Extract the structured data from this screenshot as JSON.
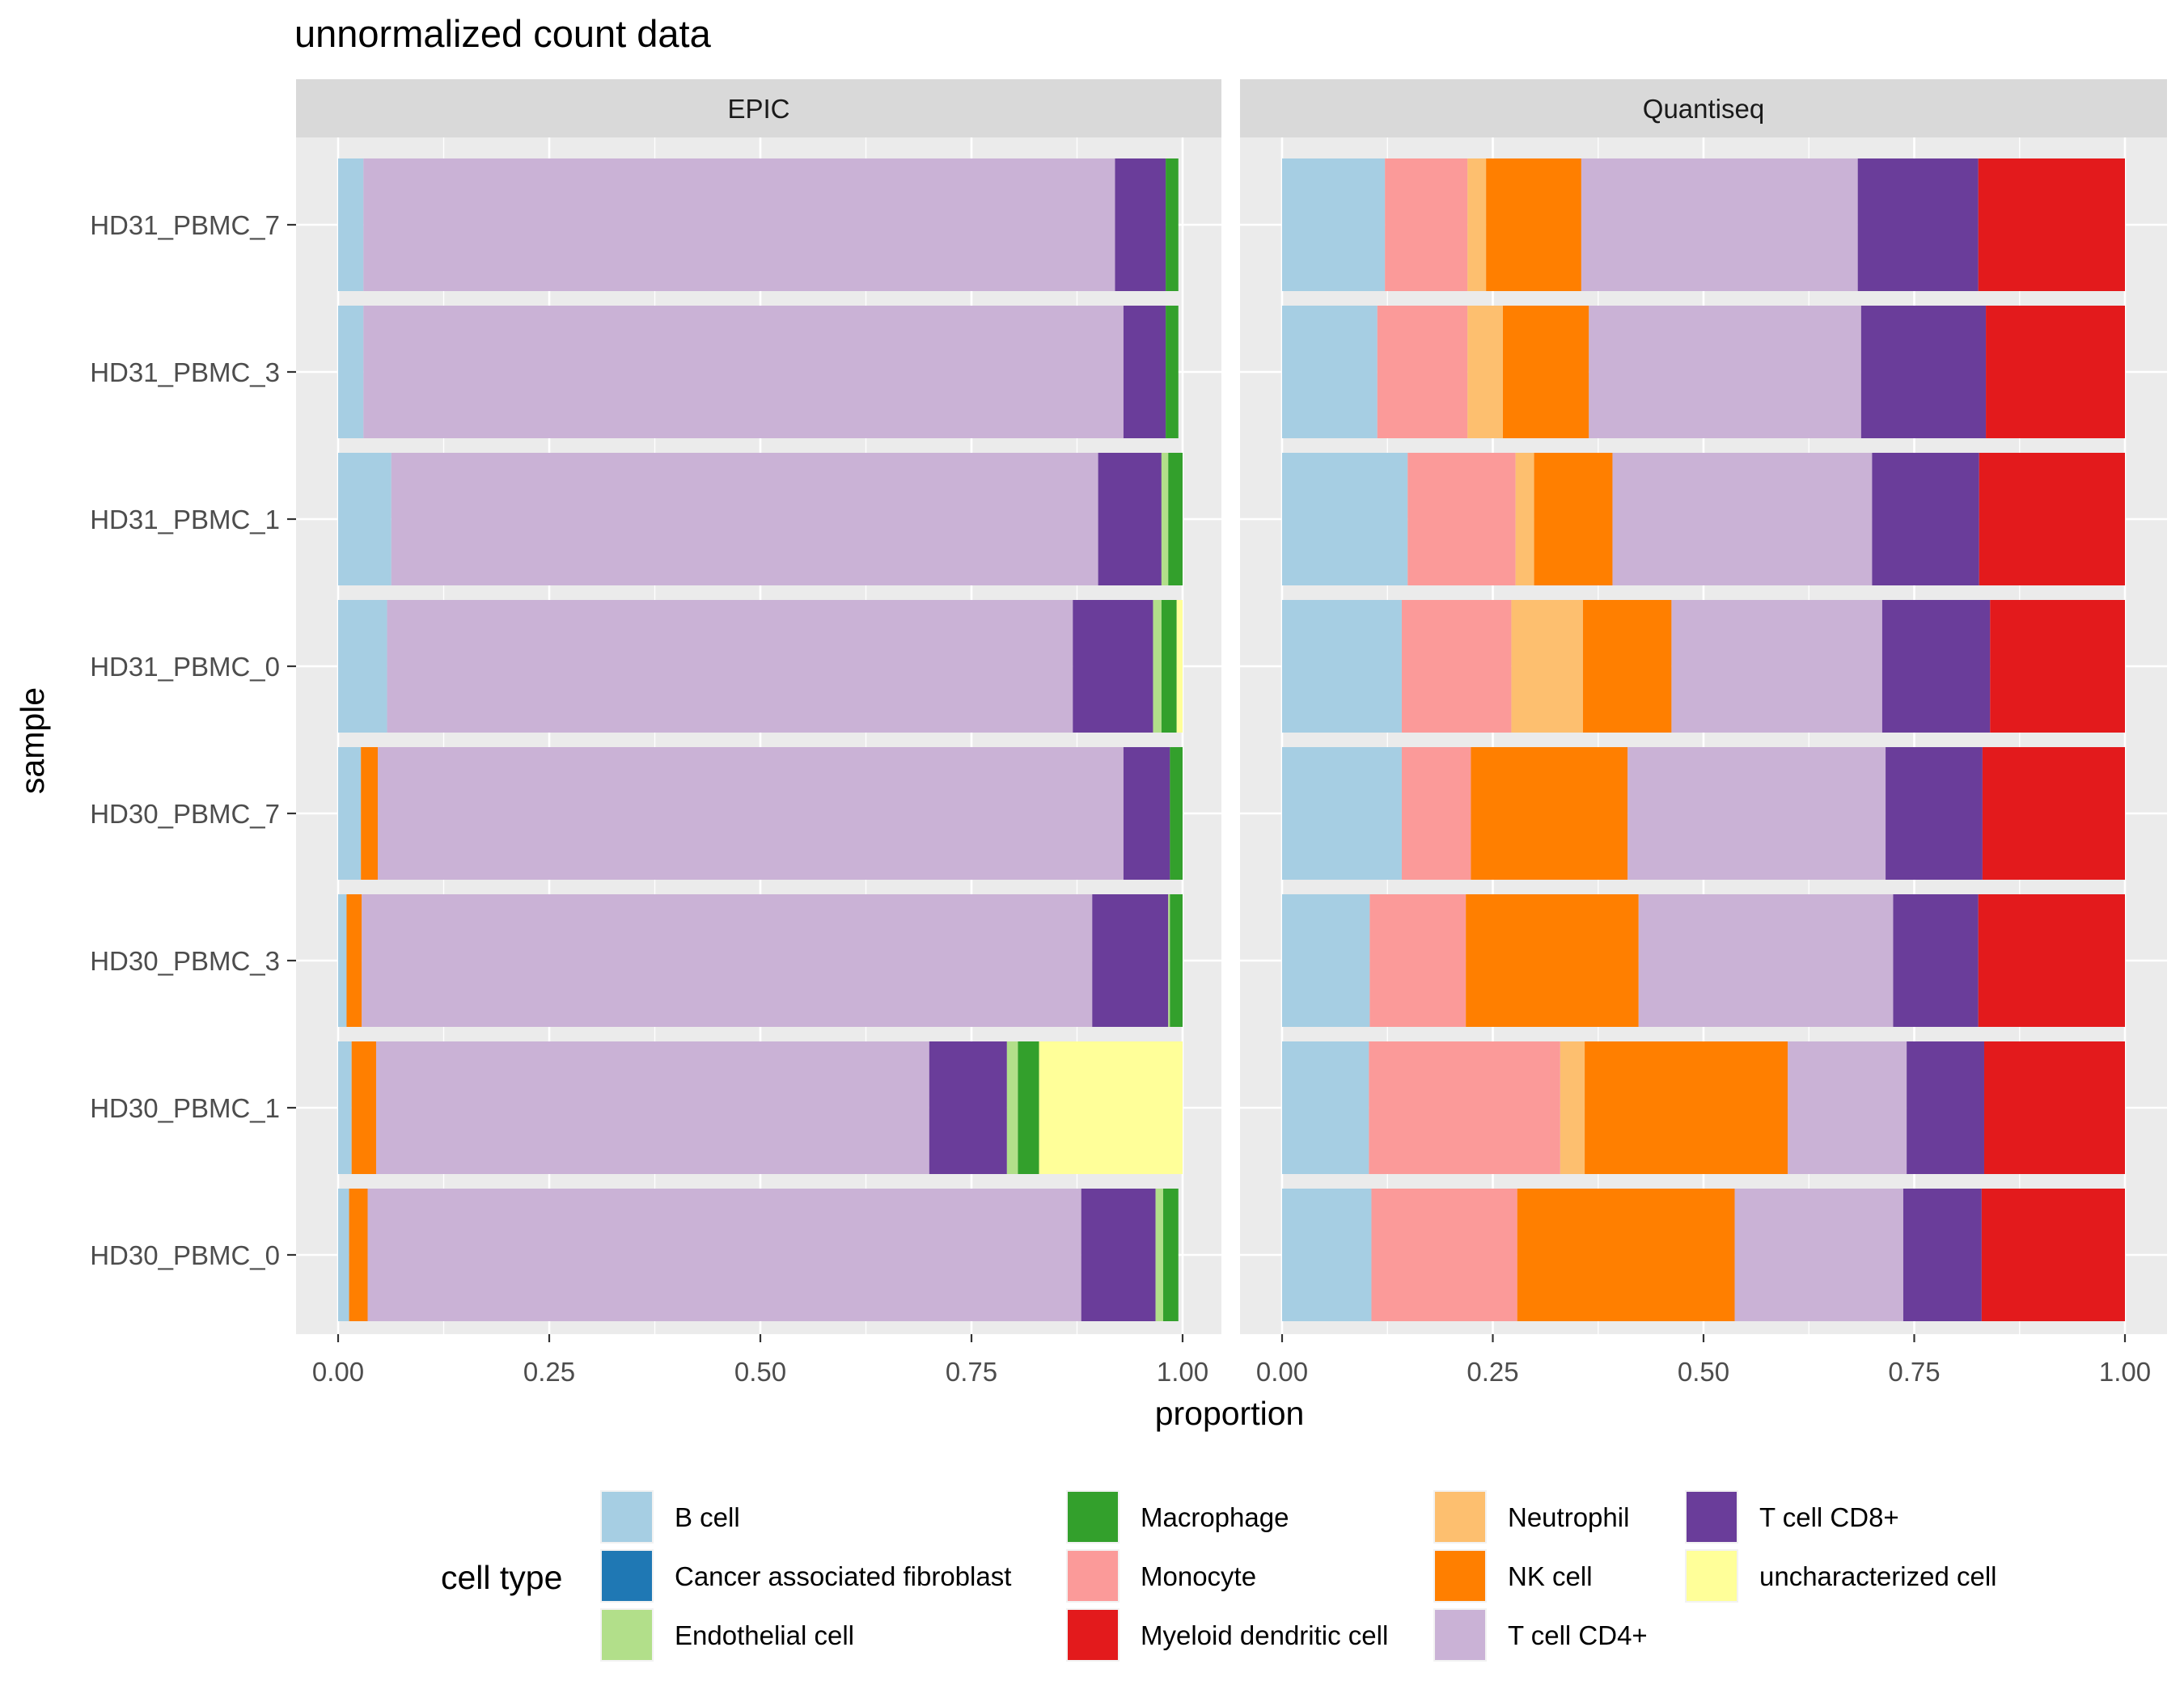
{
  "chart_data": {
    "type": "bar",
    "orientation": "horizontal",
    "stacked": true,
    "title": "unnormalized count data",
    "xlabel": "proportion",
    "ylabel": "sample",
    "xlim": [
      0,
      1
    ],
    "x_ticks": [
      "0.00",
      "0.25",
      "0.50",
      "0.75",
      "1.00"
    ],
    "grid": true,
    "legend_position": "bottom",
    "legend_title": "cell type",
    "categories": [
      "HD31_PBMC_7",
      "HD31_PBMC_3",
      "HD31_PBMC_1",
      "HD31_PBMC_0",
      "HD30_PBMC_7",
      "HD30_PBMC_3",
      "HD30_PBMC_1",
      "HD30_PBMC_0"
    ],
    "cell_types": [
      {
        "name": "B cell",
        "color": "#A6CEE3"
      },
      {
        "name": "Cancer associated fibroblast",
        "color": "#1F78B4"
      },
      {
        "name": "Endothelial cell",
        "color": "#B2DF8A"
      },
      {
        "name": "Macrophage",
        "color": "#33A02C"
      },
      {
        "name": "Monocyte",
        "color": "#FB9A99"
      },
      {
        "name": "Myeloid dendritic cell",
        "color": "#E31A1C"
      },
      {
        "name": "Neutrophil",
        "color": "#FDBF6F"
      },
      {
        "name": "NK cell",
        "color": "#FF7F00"
      },
      {
        "name": "T cell CD4+",
        "color": "#CAB2D6"
      },
      {
        "name": "T cell CD8+",
        "color": "#6A3D9A"
      },
      {
        "name": "uncharacterized cell",
        "color": "#FFFF99"
      }
    ],
    "stack_order": [
      "B cell",
      "Cancer associated fibroblast",
      "Monocyte",
      "Neutrophil",
      "NK cell",
      "T cell CD4+",
      "T cell CD8+",
      "Endothelial cell",
      "Macrophage",
      "Myeloid dendritic cell",
      "uncharacterized cell"
    ],
    "panels": [
      {
        "name": "EPIC",
        "values": {
          "HD31_PBMC_7": {
            "B cell": 0.03,
            "T cell CD4+": 0.89,
            "T cell CD8+": 0.06,
            "Macrophage": 0.015
          },
          "HD31_PBMC_3": {
            "B cell": 0.03,
            "T cell CD4+": 0.9,
            "T cell CD8+": 0.05,
            "Macrophage": 0.015
          },
          "HD31_PBMC_1": {
            "B cell": 0.063,
            "T cell CD4+": 0.837,
            "T cell CD8+": 0.075,
            "Endothelial cell": 0.008,
            "Macrophage": 0.017
          },
          "HD31_PBMC_0": {
            "B cell": 0.058,
            "T cell CD4+": 0.812,
            "T cell CD8+": 0.095,
            "Endothelial cell": 0.01,
            "Macrophage": 0.018,
            "uncharacterized cell": 0.007
          },
          "HD30_PBMC_7": {
            "B cell": 0.027,
            "T cell CD4+": 0.883,
            "T cell CD8+": 0.055,
            "Macrophage": 0.015,
            "NK cell": 0.02
          },
          "HD30_PBMC_3": {
            "B cell": 0.01,
            "T cell CD4+": 0.865,
            "T cell CD8+": 0.09,
            "Endothelial cell": 0.002,
            "Macrophage": 0.015,
            "NK cell": 0.018
          },
          "HD30_PBMC_1": {
            "B cell": 0.016,
            "T cell CD4+": 0.655,
            "T cell CD8+": 0.092,
            "Endothelial cell": 0.013,
            "Macrophage": 0.025,
            "NK cell": 0.029,
            "uncharacterized cell": 0.17
          },
          "HD30_PBMC_0": {
            "B cell": 0.013,
            "T cell CD4+": 0.845,
            "T cell CD8+": 0.088,
            "Endothelial cell": 0.009,
            "Macrophage": 0.018,
            "NK cell": 0.022
          }
        }
      },
      {
        "name": "Quantiseq",
        "values": {
          "HD31_PBMC_7": {
            "B cell": 0.122,
            "Monocyte": 0.098,
            "Neutrophil": 0.022,
            "NK cell": 0.113,
            "T cell CD4+": 0.328,
            "T cell CD8+": 0.143,
            "Myeloid dendritic cell": 0.174
          },
          "HD31_PBMC_3": {
            "B cell": 0.113,
            "Monocyte": 0.107,
            "Neutrophil": 0.042,
            "NK cell": 0.102,
            "T cell CD4+": 0.323,
            "T cell CD8+": 0.148,
            "Myeloid dendritic cell": 0.165
          },
          "HD31_PBMC_1": {
            "B cell": 0.149,
            "Monocyte": 0.128,
            "Neutrophil": 0.022,
            "NK cell": 0.093,
            "T cell CD4+": 0.308,
            "T cell CD8+": 0.127,
            "Myeloid dendritic cell": 0.173
          },
          "HD31_PBMC_0": {
            "B cell": 0.142,
            "Monocyte": 0.13,
            "Neutrophil": 0.085,
            "NK cell": 0.105,
            "T cell CD4+": 0.25,
            "T cell CD8+": 0.128,
            "Myeloid dendritic cell": 0.16
          },
          "HD30_PBMC_7": {
            "B cell": 0.142,
            "Monocyte": 0.082,
            "NK cell": 0.186,
            "T cell CD4+": 0.306,
            "T cell CD8+": 0.115,
            "Myeloid dendritic cell": 0.169
          },
          "HD30_PBMC_3": {
            "B cell": 0.104,
            "Monocyte": 0.114,
            "NK cell": 0.205,
            "T cell CD4+": 0.302,
            "T cell CD8+": 0.101,
            "Myeloid dendritic cell": 0.174
          },
          "HD30_PBMC_1": {
            "B cell": 0.103,
            "Monocyte": 0.227,
            "Neutrophil": 0.029,
            "NK cell": 0.241,
            "T cell CD4+": 0.141,
            "T cell CD8+": 0.092,
            "Myeloid dendritic cell": 0.167
          },
          "HD30_PBMC_0": {
            "B cell": 0.106,
            "Monocyte": 0.173,
            "NK cell": 0.258,
            "T cell CD4+": 0.2,
            "T cell CD8+": 0.093,
            "Myeloid dendritic cell": 0.17
          }
        }
      }
    ]
  }
}
